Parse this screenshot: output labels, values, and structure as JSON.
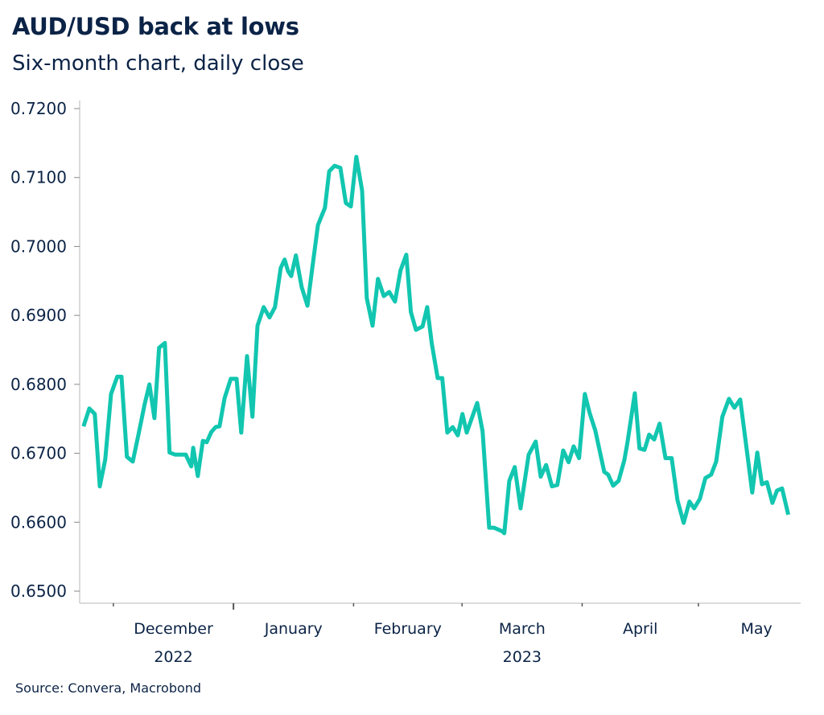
{
  "header": {
    "title": "AUD/USD back at lows",
    "subtitle": "Six-month chart, daily close"
  },
  "footer": {
    "source": "Source: Convera, Macrobond"
  },
  "chart_data": {
    "type": "line",
    "title": "AUD/USD back at lows",
    "subtitle": "Six-month chart, daily close",
    "xlabel": "",
    "ylabel": "",
    "x_unit": "days since 2022-11-01",
    "xlim": [
      21.3,
      207.4
    ],
    "ylim": [
      0.65,
      0.72
    ],
    "grid": false,
    "legend": "none",
    "line_color": "#12c6b0",
    "yticks": [
      {
        "value": 0.72,
        "label": "0.7200"
      },
      {
        "value": 0.71,
        "label": "0.7100"
      },
      {
        "value": 0.7,
        "label": "0.7000"
      },
      {
        "value": 0.69,
        "label": "0.6900"
      },
      {
        "value": 0.68,
        "label": "0.6800"
      },
      {
        "value": 0.67,
        "label": "0.6700"
      },
      {
        "value": 0.66,
        "label": "0.6600"
      },
      {
        "value": 0.65,
        "label": "0.6500"
      }
    ],
    "xticks": [
      {
        "day": 30,
        "major": false
      },
      {
        "day": 61,
        "major": true
      },
      {
        "day": 92,
        "major": false
      },
      {
        "day": 120,
        "major": false
      },
      {
        "day": 151,
        "major": false
      },
      {
        "day": 181,
        "major": false
      }
    ],
    "xtick_labels": [
      {
        "day": 45.5,
        "label": "December"
      },
      {
        "day": 76.5,
        "label": "January"
      },
      {
        "day": 106,
        "label": "February"
      },
      {
        "day": 135.5,
        "label": "March"
      },
      {
        "day": 166,
        "label": "April"
      },
      {
        "day": 196,
        "label": "May"
      }
    ],
    "year_labels": [
      {
        "day": 45.5,
        "label": "2022"
      },
      {
        "day": 135.5,
        "label": "2023"
      }
    ],
    "series": [
      {
        "name": "AUD/USD",
        "x": [
          22.3,
          23.8,
          25.2,
          26.5,
          27.9,
          29.4,
          31.0,
          32.1,
          33.5,
          35.0,
          36.4,
          38.1,
          39.3,
          40.6,
          41.8,
          43.3,
          44.5,
          46.0,
          47.4,
          48.7,
          49.1,
          50.1,
          50.6,
          51.8,
          53.1,
          54.1,
          55.3,
          56.4,
          57.4,
          58.7,
          60.3,
          61.8,
          63.0,
          64.5,
          65.9,
          67.2,
          68.8,
          70.3,
          71.7,
          73.2,
          74.2,
          75.1,
          75.9,
          77.1,
          78.6,
          80.1,
          81.3,
          82.8,
          83.8,
          84.6,
          85.7,
          87.1,
          88.6,
          90.0,
          91.3,
          92.7,
          94.2,
          95.4,
          96.9,
          98.3,
          99.8,
          101.2,
          102.7,
          104.1,
          105.6,
          106.8,
          108.1,
          109.8,
          111.0,
          112.2,
          113.7,
          114.9,
          116.2,
          117.6,
          118.9,
          120.1,
          121.2,
          123.9,
          125.3,
          127.0,
          128.2,
          130.3,
          130.9,
          132.2,
          133.6,
          135.1,
          137.2,
          139.0,
          140.3,
          141.7,
          143.2,
          144.6,
          146.1,
          147.5,
          148.8,
          150.2,
          151.7,
          152.9,
          154.4,
          156.7,
          157.7,
          159.0,
          160.4,
          161.9,
          162.7,
          164.6,
          165.8,
          167.1,
          168.3,
          169.6,
          171.0,
          172.5,
          174.1,
          175.6,
          177.2,
          178.7,
          179.9,
          181.4,
          182.8,
          184.3,
          185.6,
          187.2,
          188.9,
          190.3,
          191.8,
          193.7,
          194.9,
          196.2,
          197.4,
          198.7,
          200.1,
          201.3,
          202.6,
          204.2
        ],
        "values": [
          0.6739,
          0.6765,
          0.6757,
          0.6652,
          0.6691,
          0.6786,
          0.6811,
          0.6811,
          0.6695,
          0.6688,
          0.6725,
          0.6772,
          0.68,
          0.6751,
          0.6853,
          0.686,
          0.6701,
          0.6698,
          0.6698,
          0.6698,
          0.6693,
          0.6681,
          0.6708,
          0.6667,
          0.6718,
          0.6716,
          0.6731,
          0.6738,
          0.6739,
          0.678,
          0.6808,
          0.6808,
          0.673,
          0.6841,
          0.6753,
          0.6885,
          0.6912,
          0.6897,
          0.6912,
          0.6969,
          0.6981,
          0.6964,
          0.6957,
          0.6987,
          0.6941,
          0.6914,
          0.6967,
          0.7031,
          0.7045,
          0.7056,
          0.7109,
          0.7117,
          0.7114,
          0.7063,
          0.7058,
          0.713,
          0.7081,
          0.6925,
          0.6885,
          0.6953,
          0.6928,
          0.6934,
          0.692,
          0.6965,
          0.6988,
          0.6905,
          0.6879,
          0.6884,
          0.6912,
          0.6859,
          0.6809,
          0.6809,
          0.673,
          0.6738,
          0.6726,
          0.6757,
          0.673,
          0.6773,
          0.6732,
          0.6592,
          0.6592,
          0.6587,
          0.6584,
          0.666,
          0.668,
          0.662,
          0.6698,
          0.6717,
          0.6666,
          0.6683,
          0.6652,
          0.6654,
          0.6704,
          0.6687,
          0.671,
          0.6693,
          0.6786,
          0.6759,
          0.6733,
          0.6673,
          0.6669,
          0.6653,
          0.666,
          0.669,
          0.6716,
          0.6787,
          0.6707,
          0.6705,
          0.6727,
          0.672,
          0.6743,
          0.6693,
          0.6693,
          0.6632,
          0.6599,
          0.663,
          0.662,
          0.6634,
          0.6664,
          0.6669,
          0.6688,
          0.6753,
          0.6779,
          0.6766,
          0.6778,
          0.6696,
          0.6643,
          0.6701,
          0.6655,
          0.6658,
          0.6628,
          0.6646,
          0.6649,
          0.6611
        ]
      }
    ]
  }
}
